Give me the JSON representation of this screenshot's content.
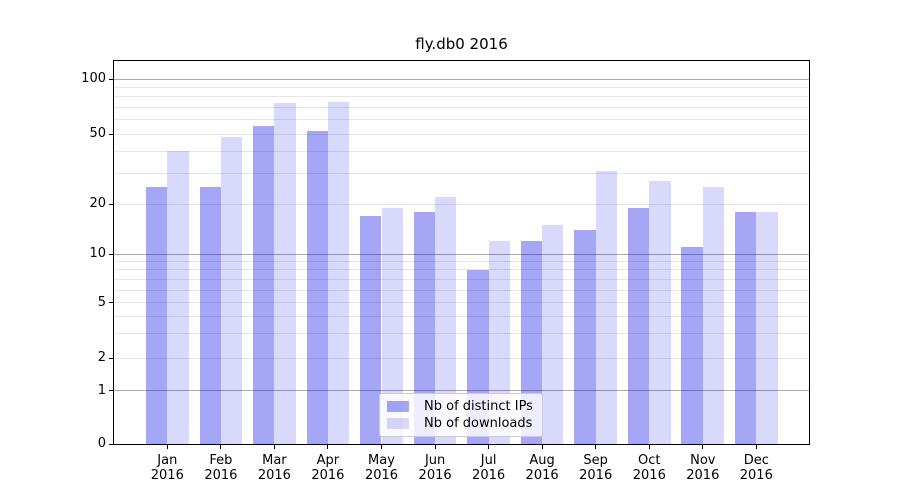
{
  "title": "fly.db0 2016",
  "colors": {
    "distinct_ips_bar": "rgba(0, 0, 230, 0.35)",
    "downloads_bar": "rgba(0, 0, 230, 0.15)",
    "grid_major": "#ababab",
    "grid_minor": "#e6e6e6",
    "axis_line": "#000000",
    "text": "#000000",
    "legend_background": "rgba(255,255,255,0.8)",
    "legend_border": "#cccccc"
  },
  "x_axis": {
    "months": [
      "Jan",
      "Feb",
      "Mar",
      "Apr",
      "May",
      "Jun",
      "Jul",
      "Aug",
      "Sep",
      "Oct",
      "Nov",
      "Dec"
    ],
    "year": "2016"
  },
  "chart_data": {
    "type": "bar",
    "title": "fly.db0 2016",
    "categories": [
      "Jan 2016",
      "Feb 2016",
      "Mar 2016",
      "Apr 2016",
      "May 2016",
      "Jun 2016",
      "Jul 2016",
      "Aug 2016",
      "Sep 2016",
      "Oct 2016",
      "Nov 2016",
      "Dec 2016"
    ],
    "series": [
      {
        "name": "Nb of distinct IPs",
        "values": [
          25,
          25,
          55,
          52,
          17,
          18,
          8,
          12,
          14,
          19,
          11,
          18
        ]
      },
      {
        "name": "Nb of downloads",
        "values": [
          40,
          48,
          74,
          75,
          19,
          22,
          12,
          15,
          31,
          27,
          25,
          18
        ]
      }
    ],
    "xlabel": "",
    "ylabel": "",
    "y_axis": {
      "scale": "log-like with zero baseline",
      "tick_values": [
        0,
        1,
        2,
        5,
        10,
        20,
        50,
        100
      ],
      "tick_labels": [
        "0",
        "1",
        "2",
        "5",
        "10",
        "20",
        "50",
        "100"
      ],
      "major_gridlines": [
        1,
        10,
        100
      ],
      "minor_gridlines": [
        2,
        3,
        4,
        5,
        6,
        7,
        8,
        9,
        20,
        30,
        40,
        50,
        60,
        70,
        80,
        90
      ],
      "range": [
        0,
        125
      ]
    },
    "legend": {
      "position": "lower center",
      "entries": [
        "Nb of distinct IPs",
        "Nb of downloads"
      ]
    },
    "grid": true
  }
}
